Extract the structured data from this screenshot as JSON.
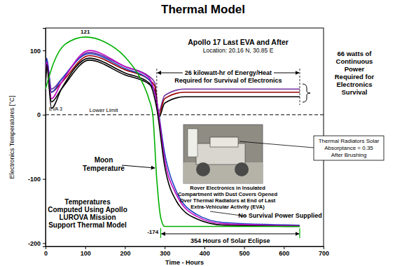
{
  "chart_data": {
    "type": "line",
    "title": "Thermal Model",
    "x_label": "Time - Hours",
    "y_label": "Electronics Temperatures [°C]",
    "xlim": [
      0,
      700
    ],
    "xticks": [
      0,
      100,
      200,
      300,
      400,
      500,
      600,
      700
    ],
    "ylim": [
      -205,
      135
    ],
    "yticks": [
      -200,
      -100,
      0,
      100
    ],
    "grid": false,
    "lower_limit": {
      "label": "Lower Limit",
      "value": 0
    },
    "series": [
      {
        "color": "#7030a0",
        "x": [
          0,
          3,
          15,
          40,
          110,
          200,
          260,
          275,
          285,
          300,
          350,
          640
        ],
        "values": [
          55,
          85,
          40,
          55,
          97,
          75,
          60,
          50,
          5,
          30,
          40,
          40
        ]
      },
      {
        "color": "#990000",
        "x": [
          0,
          3,
          15,
          40,
          110,
          200,
          260,
          275,
          285,
          300,
          350,
          640
        ],
        "values": [
          50,
          80,
          35,
          50,
          92,
          70,
          55,
          45,
          0,
          25,
          35,
          35
        ]
      },
      {
        "color": "#000000",
        "x": [
          0,
          3,
          15,
          40,
          110,
          200,
          260,
          275,
          285,
          300,
          350,
          640
        ],
        "values": [
          45,
          75,
          20,
          40,
          85,
          62,
          48,
          38,
          -5,
          18,
          28,
          28
        ]
      },
      {
        "color": "#2040c0",
        "x": [
          0,
          3,
          15,
          40,
          110,
          200,
          260,
          280,
          300,
          330,
          380,
          450,
          640
        ],
        "values": [
          60,
          88,
          35,
          55,
          95,
          72,
          55,
          20,
          -60,
          -120,
          -155,
          -168,
          -172
        ]
      },
      {
        "color": "#c000c0",
        "x": [
          0,
          3,
          15,
          40,
          110,
          200,
          260,
          280,
          300,
          330,
          380,
          450,
          640
        ],
        "values": [
          58,
          82,
          25,
          50,
          100,
          75,
          58,
          20,
          -70,
          -125,
          -158,
          -170,
          -173
        ]
      },
      {
        "color": "#000000",
        "x": [
          0,
          3,
          15,
          40,
          110,
          200,
          260,
          280,
          300,
          330,
          380,
          450,
          640
        ],
        "values": [
          50,
          78,
          10,
          40,
          88,
          65,
          50,
          10,
          -80,
          -135,
          -162,
          -172,
          -174
        ]
      },
      {
        "color": "#00b000",
        "x": [
          0,
          20,
          50,
          100,
          150,
          200,
          240,
          260,
          270,
          280,
          290,
          300,
          640
        ],
        "values": [
          40,
          80,
          110,
          121,
          113,
          90,
          55,
          25,
          0,
          -100,
          -160,
          -174,
          -174
        ],
        "value_labels": [
          null,
          null,
          null,
          "121",
          null,
          null,
          null,
          null,
          null,
          null,
          null,
          "-174",
          null
        ]
      }
    ],
    "annotations": [
      [
        "Apollo 17 Last EVA and After"
      ],
      [
        "Location: 20.16 N, 30.85 E"
      ],
      [
        "EVA 3"
      ],
      [
        "26 kilowatt-hr of Energy/Heat",
        "Required for Survival of Electronics"
      ],
      [
        "66 watts of",
        "Continuous",
        "Power",
        "Required for",
        "Electronics",
        "Survival"
      ],
      [
        "Moon",
        "Temperature"
      ],
      [
        "Temperatures",
        "Computed Using Apollo",
        "LUROVA Mission",
        "Support Thermal Model"
      ],
      [
        "Thermal Radiators Solar",
        "Absorptance = 0.35",
        "After Brushing"
      ],
      [
        "Rover Electronics in Insulated",
        "Compartment with Dust Covers Opened",
        "Over Thermal Radiators at End of Last",
        "Extra-Vehicular Activity (EVA)"
      ],
      [
        "No Survival Power Supplied"
      ],
      [
        "354 Hours of Solar Eclipse"
      ]
    ]
  }
}
